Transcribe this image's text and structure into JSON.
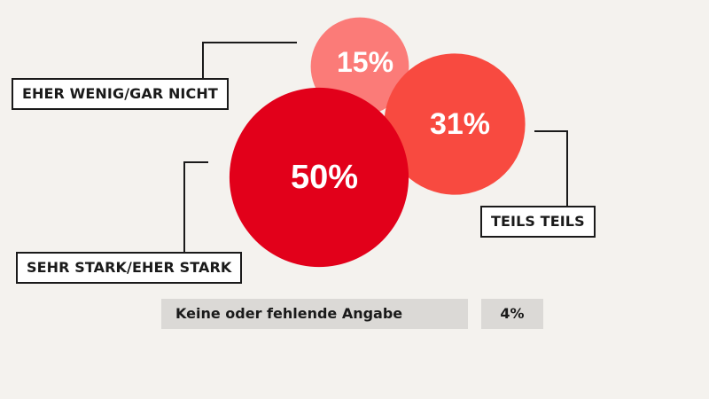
{
  "chart_data": {
    "type": "bubble",
    "categories": [
      "Sehr stark/Eher stark",
      "Teils teils",
      "Eher wenig/Gar nicht"
    ],
    "series": [
      {
        "values": [
          50,
          31,
          15
        ],
        "value_labels": [
          "50%",
          "31%",
          "15%"
        ],
        "labels": [
          "SEHR STARK/EHER STARK",
          "TEILS TEILS",
          "EHER WENIG/GAR NICHT"
        ],
        "colors": [
          "#e2001a",
          "#f84a40",
          "#fb7b78"
        ]
      }
    ],
    "footer": {
      "label": "Keine oder fehlende Angabe",
      "value": 4,
      "value_label": "4%"
    },
    "background": "#f4f2ee"
  }
}
